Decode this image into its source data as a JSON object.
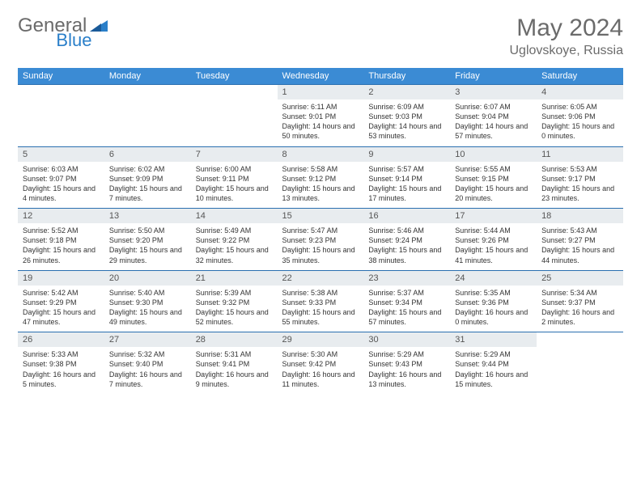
{
  "logo": {
    "text1": "General",
    "text2": "Blue"
  },
  "title": "May 2024",
  "location": "Uglovskoye, Russia",
  "brand_color": "#3b8bd4",
  "grey_bg": "#e8ecef",
  "text_color": "#6b6b6b",
  "day_headers": [
    "Sunday",
    "Monday",
    "Tuesday",
    "Wednesday",
    "Thursday",
    "Friday",
    "Saturday"
  ],
  "weeks": [
    [
      null,
      null,
      null,
      {
        "n": "1",
        "sr": "6:11 AM",
        "ss": "9:01 PM",
        "d": "14 hours and 50 minutes."
      },
      {
        "n": "2",
        "sr": "6:09 AM",
        "ss": "9:03 PM",
        "d": "14 hours and 53 minutes."
      },
      {
        "n": "3",
        "sr": "6:07 AM",
        "ss": "9:04 PM",
        "d": "14 hours and 57 minutes."
      },
      {
        "n": "4",
        "sr": "6:05 AM",
        "ss": "9:06 PM",
        "d": "15 hours and 0 minutes."
      }
    ],
    [
      {
        "n": "5",
        "sr": "6:03 AM",
        "ss": "9:07 PM",
        "d": "15 hours and 4 minutes."
      },
      {
        "n": "6",
        "sr": "6:02 AM",
        "ss": "9:09 PM",
        "d": "15 hours and 7 minutes."
      },
      {
        "n": "7",
        "sr": "6:00 AM",
        "ss": "9:11 PM",
        "d": "15 hours and 10 minutes."
      },
      {
        "n": "8",
        "sr": "5:58 AM",
        "ss": "9:12 PM",
        "d": "15 hours and 13 minutes."
      },
      {
        "n": "9",
        "sr": "5:57 AM",
        "ss": "9:14 PM",
        "d": "15 hours and 17 minutes."
      },
      {
        "n": "10",
        "sr": "5:55 AM",
        "ss": "9:15 PM",
        "d": "15 hours and 20 minutes."
      },
      {
        "n": "11",
        "sr": "5:53 AM",
        "ss": "9:17 PM",
        "d": "15 hours and 23 minutes."
      }
    ],
    [
      {
        "n": "12",
        "sr": "5:52 AM",
        "ss": "9:18 PM",
        "d": "15 hours and 26 minutes."
      },
      {
        "n": "13",
        "sr": "5:50 AM",
        "ss": "9:20 PM",
        "d": "15 hours and 29 minutes."
      },
      {
        "n": "14",
        "sr": "5:49 AM",
        "ss": "9:22 PM",
        "d": "15 hours and 32 minutes."
      },
      {
        "n": "15",
        "sr": "5:47 AM",
        "ss": "9:23 PM",
        "d": "15 hours and 35 minutes."
      },
      {
        "n": "16",
        "sr": "5:46 AM",
        "ss": "9:24 PM",
        "d": "15 hours and 38 minutes."
      },
      {
        "n": "17",
        "sr": "5:44 AM",
        "ss": "9:26 PM",
        "d": "15 hours and 41 minutes."
      },
      {
        "n": "18",
        "sr": "5:43 AM",
        "ss": "9:27 PM",
        "d": "15 hours and 44 minutes."
      }
    ],
    [
      {
        "n": "19",
        "sr": "5:42 AM",
        "ss": "9:29 PM",
        "d": "15 hours and 47 minutes."
      },
      {
        "n": "20",
        "sr": "5:40 AM",
        "ss": "9:30 PM",
        "d": "15 hours and 49 minutes."
      },
      {
        "n": "21",
        "sr": "5:39 AM",
        "ss": "9:32 PM",
        "d": "15 hours and 52 minutes."
      },
      {
        "n": "22",
        "sr": "5:38 AM",
        "ss": "9:33 PM",
        "d": "15 hours and 55 minutes."
      },
      {
        "n": "23",
        "sr": "5:37 AM",
        "ss": "9:34 PM",
        "d": "15 hours and 57 minutes."
      },
      {
        "n": "24",
        "sr": "5:35 AM",
        "ss": "9:36 PM",
        "d": "16 hours and 0 minutes."
      },
      {
        "n": "25",
        "sr": "5:34 AM",
        "ss": "9:37 PM",
        "d": "16 hours and 2 minutes."
      }
    ],
    [
      {
        "n": "26",
        "sr": "5:33 AM",
        "ss": "9:38 PM",
        "d": "16 hours and 5 minutes."
      },
      {
        "n": "27",
        "sr": "5:32 AM",
        "ss": "9:40 PM",
        "d": "16 hours and 7 minutes."
      },
      {
        "n": "28",
        "sr": "5:31 AM",
        "ss": "9:41 PM",
        "d": "16 hours and 9 minutes."
      },
      {
        "n": "29",
        "sr": "5:30 AM",
        "ss": "9:42 PM",
        "d": "16 hours and 11 minutes."
      },
      {
        "n": "30",
        "sr": "5:29 AM",
        "ss": "9:43 PM",
        "d": "16 hours and 13 minutes."
      },
      {
        "n": "31",
        "sr": "5:29 AM",
        "ss": "9:44 PM",
        "d": "16 hours and 15 minutes."
      },
      null
    ]
  ],
  "labels": {
    "sunrise": "Sunrise:",
    "sunset": "Sunset:",
    "daylight": "Daylight:"
  }
}
